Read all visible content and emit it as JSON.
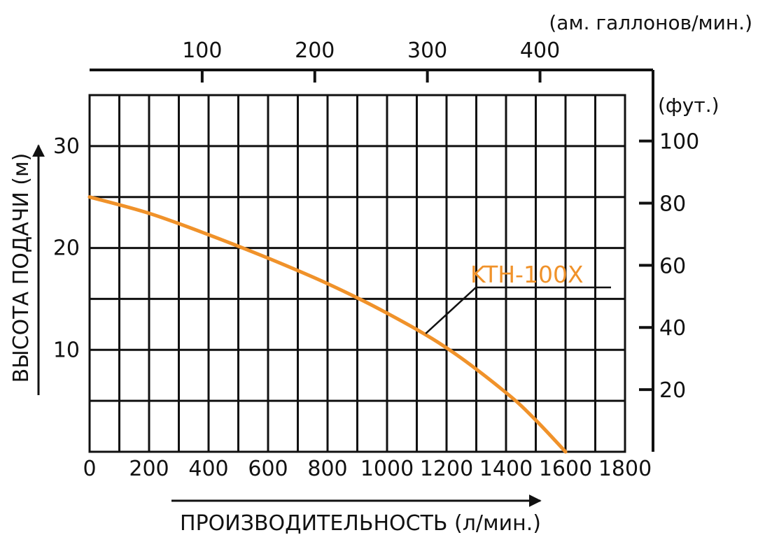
{
  "chart_data": {
    "type": "line",
    "xlabel": "ПРОИЗВОДИТЕЛЬНОСТЬ (л/мин.)",
    "ylabel": "ВЫСОТА ПОДАЧИ (м)",
    "xlim": [
      0,
      1800
    ],
    "ylim": [
      0,
      35
    ],
    "x_ticks": [
      "0",
      "200",
      "400",
      "600",
      "800",
      "1000",
      "1200",
      "1400",
      "1600",
      "1800"
    ],
    "y_ticks": [
      "10",
      "20",
      "30"
    ],
    "grid": true,
    "top_axis": {
      "unit_label": "(ам. галлонов/мин.)",
      "ticks": [
        {
          "label": "100",
          "value_lpm": 378.5
        },
        {
          "label": "200",
          "value_lpm": 757.1
        },
        {
          "label": "300",
          "value_lpm": 1135.6
        },
        {
          "label": "400",
          "value_lpm": 1514.2
        }
      ]
    },
    "right_axis": {
      "unit_label": "(фут.)",
      "ticks": [
        {
          "label": "20",
          "value_m": 6.1
        },
        {
          "label": "40",
          "value_m": 12.2
        },
        {
          "label": "60",
          "value_m": 18.3
        },
        {
          "label": "80",
          "value_m": 24.4
        },
        {
          "label": "100",
          "value_m": 30.5
        }
      ]
    },
    "series": [
      {
        "name": "KTH-100X",
        "color": "#f0922a",
        "x": [
          0,
          200,
          400,
          600,
          800,
          1000,
          1200,
          1400,
          1500,
          1600
        ],
        "y": [
          25,
          23.4,
          21.3,
          19,
          16.5,
          13.6,
          10.2,
          5.8,
          3.1,
          0
        ]
      }
    ]
  }
}
